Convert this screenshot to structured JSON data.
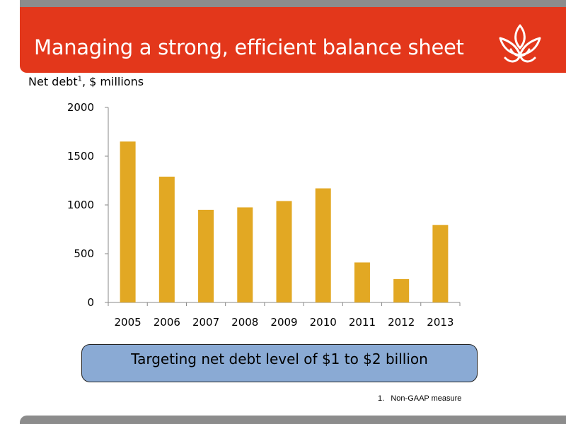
{
  "slide": {
    "title": "Managing a strong, efficient balance sheet",
    "subtitle_main": "Net debt",
    "subtitle_sup": "1",
    "subtitle_rest": ", $ millions",
    "callout": "Targeting net debt level of $1 to $2 billion",
    "footnote_num": "1.",
    "footnote_text": "Non-GAAP measure",
    "brand_color": "#e3371b",
    "logo_icon": "flame-lotus-logo-icon"
  },
  "chart_data": {
    "type": "bar",
    "categories": [
      "2005",
      "2006",
      "2007",
      "2008",
      "2009",
      "2010",
      "2011",
      "2012",
      "2013"
    ],
    "values": [
      1650,
      1290,
      950,
      975,
      1040,
      1170,
      410,
      240,
      795
    ],
    "ylim": [
      0,
      2000
    ],
    "yticks": [
      0,
      500,
      1000,
      1500,
      2000
    ],
    "bar_color": "#e2a823",
    "grid": false,
    "legend": "none"
  }
}
